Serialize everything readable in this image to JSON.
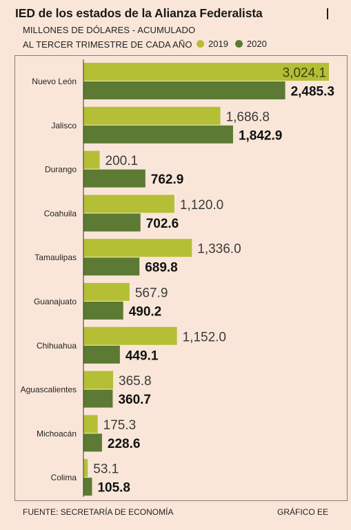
{
  "title": "IED de los estados de la Alianza Federalista",
  "subtitle_line1": "MILLONES DE DÓLARES - ACUMULADO",
  "subtitle_line2": "AL TERCER TRIMESTRE DE CADA AÑO",
  "source": "FUENTE: SECRETARÍA DE ECONOMÍA",
  "credit": "GRÁFICO EE",
  "colors": {
    "background": "#f9e6d8",
    "series_2019": "#b4bf36",
    "series_2020": "#5c7a33"
  },
  "chart_data": {
    "type": "bar",
    "orientation": "horizontal",
    "categories": [
      "Nuevo León",
      "Jalisco",
      "Durango",
      "Coahuila",
      "Tamaulipas",
      "Guanajuato",
      "Chihuahua",
      "Aguascalientes",
      "Michoacán",
      "Colima"
    ],
    "series": [
      {
        "name": "2019",
        "values": [
          3024.1,
          1686.8,
          200.1,
          1120.0,
          1336.0,
          567.9,
          1152.0,
          365.8,
          175.3,
          53.1
        ],
        "labels": [
          "3,024.1",
          "1,686.8",
          "200.1",
          "1,120.0",
          "1,336.0",
          "567.9",
          "1,152.0",
          "365.8",
          "175.3",
          "53.1"
        ]
      },
      {
        "name": "2020",
        "values": [
          2485.3,
          1842.9,
          762.9,
          702.6,
          689.8,
          490.2,
          449.1,
          360.7,
          228.6,
          105.8
        ],
        "labels": [
          "2,485.3",
          "1,842.9",
          "762.9",
          "702.6",
          "689.8",
          "490.2",
          "449.1",
          "360.7",
          "228.6",
          "105.8"
        ]
      }
    ],
    "xlim": [
      0,
      3024.1
    ],
    "grid": false,
    "legend_position": "top-right"
  }
}
